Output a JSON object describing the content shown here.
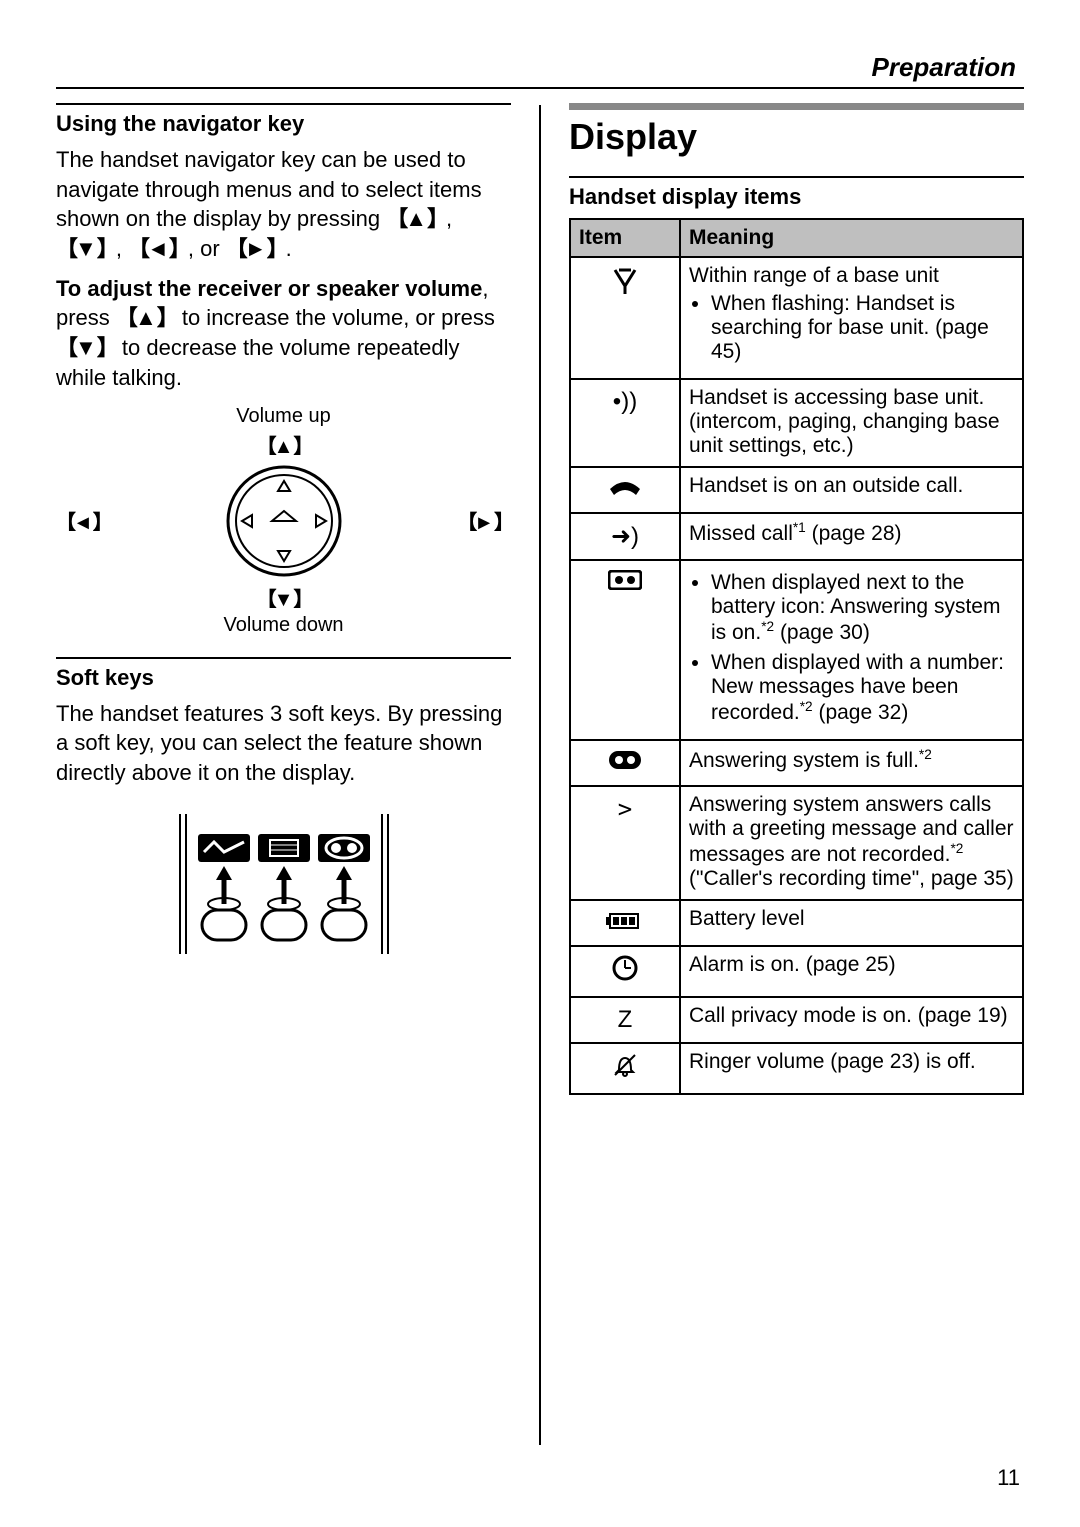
{
  "header": {
    "section": "Preparation"
  },
  "left": {
    "nav_key": {
      "title": "Using the navigator key",
      "para1": "The handset navigator key can be used to navigate through menus and to select items shown on the display by pressing ",
      "keys_line": {
        "up": "▲",
        "down": "▼",
        "left": "◄",
        "right": "►",
        "sep": ", ",
        "or": ", or "
      },
      "period": ".",
      "para2_bold": "To adjust the receiver or speaker volume",
      "para2a": ", press ",
      "para2b": " to increase the volume, or press ",
      "para2c": " to decrease the volume repeatedly while talking.",
      "fig": {
        "vol_up": "Volume up",
        "vol_down": "Volume down",
        "left": "◄",
        "right": "►",
        "up": "▲",
        "down": "▼"
      }
    },
    "soft_keys": {
      "title": "Soft keys",
      "para": "The handset features 3 soft keys. By pressing a soft key, you can select the feature shown directly above it on the display."
    }
  },
  "right": {
    "display_title": "Display",
    "table_title": "Handset display items",
    "headers": {
      "item": "Item",
      "meaning": "Meaning"
    },
    "rows": [
      {
        "icon_svg": "antenna",
        "meaning_lines": [
          "Within range of a base unit"
        ],
        "bullets": [
          "When flashing: Handset is searching for base unit. (page 45)"
        ]
      },
      {
        "icon_text": "•))",
        "meaning_lines": [
          "Handset is accessing base unit. (intercom, paging, changing base unit settings, etc.)"
        ]
      },
      {
        "icon_svg": "phone",
        "meaning_lines": [
          "Handset is on an outside call."
        ]
      },
      {
        "icon_text": "➜)",
        "meaning_html": "Missed call<span class='sup'>*1</span> (page 28)"
      },
      {
        "icon_svg": "tape_open",
        "bullets_html": [
          "When displayed next to the battery icon: Answering system is on.<span class='sup'>*2</span> (page 30)",
          "When displayed with a number: New messages have been recorded.<span class='sup'>*2</span> (page 32)"
        ]
      },
      {
        "icon_svg": "tape_full",
        "meaning_html": "Answering system is full.<span class='sup'>*2</span>"
      },
      {
        "icon_text": ">",
        "icon_class": "gt",
        "meaning_html": "Answering system answers calls with a greeting message and caller messages are not recorded.<span class='sup'>*2</span> (\"Caller's recording time\", page 35)"
      },
      {
        "icon_svg": "battery",
        "meaning_lines": [
          "Battery level"
        ]
      },
      {
        "icon_svg": "clock",
        "meaning_lines": [
          "Alarm is on. (page 25)"
        ]
      },
      {
        "icon_text": "Z",
        "meaning_lines": [
          "Call privacy mode is on. (page 19)"
        ]
      },
      {
        "icon_svg": "bell_off",
        "meaning_lines": [
          "Ringer volume (page 23) is off."
        ]
      }
    ]
  },
  "page_number": "11"
}
